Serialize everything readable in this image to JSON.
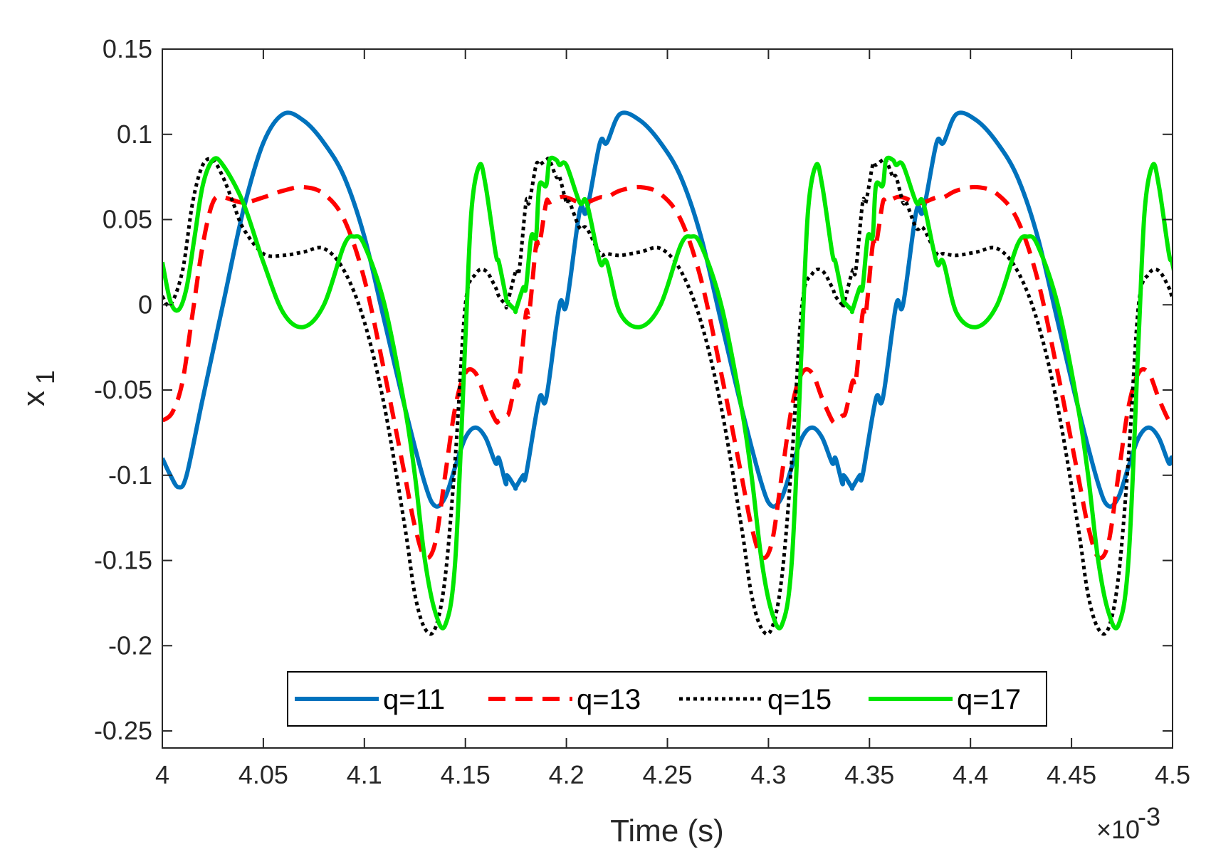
{
  "chart_data": {
    "type": "line",
    "title": "",
    "xlabel": "Time (s)",
    "ylabel": "x",
    "ylabel_subscript": "1",
    "x_exponent_label": "×10",
    "x_exponent_power": "-3",
    "xlim": [
      4.0,
      4.5
    ],
    "ylim": [
      -0.26,
      0.15
    ],
    "xticks": [
      4.0,
      4.05,
      4.1,
      4.15,
      4.2,
      4.25,
      4.3,
      4.35,
      4.4,
      4.45,
      4.5
    ],
    "xtick_labels": [
      "4",
      "4.05",
      "4.1",
      "4.15",
      "4.2",
      "4.25",
      "4.3",
      "4.35",
      "4.4",
      "4.45",
      "4.5"
    ],
    "yticks": [
      0.15,
      0.1,
      0.05,
      0,
      -0.05,
      -0.1,
      -0.15,
      -0.2,
      -0.25
    ],
    "ytick_labels": [
      "0.15",
      "0.1",
      "0.05",
      "0",
      "-0.05",
      "-0.1",
      "-0.15",
      "-0.2",
      "-0.25"
    ],
    "grid": false,
    "legend_position": "bottom-center",
    "period": 0.1666,
    "series": [
      {
        "name": "q=11",
        "label": "q=11",
        "color": "#0072BD",
        "style": "solid",
        "x": [
          4.0,
          4.004,
          4.008,
          4.012,
          4.02,
          4.03,
          4.04,
          4.05,
          4.06,
          4.07,
          4.08,
          4.09,
          4.1,
          4.11,
          4.12,
          4.13,
          4.135,
          4.14,
          4.145,
          4.15,
          4.155,
          4.16,
          4.165,
          4.17,
          4.175,
          4.18,
          4.19,
          4.2,
          4.21,
          4.22,
          4.2266
        ],
        "values": [
          -0.09,
          -0.1,
          -0.107,
          -0.1,
          -0.055,
          0.0,
          0.055,
          0.095,
          0.112,
          0.108,
          0.095,
          0.075,
          0.04,
          -0.01,
          -0.06,
          -0.105,
          -0.118,
          -0.113,
          -0.095,
          -0.078,
          -0.072,
          -0.078,
          -0.093,
          -0.105,
          -0.107,
          -0.1,
          -0.055,
          0.0,
          0.055,
          0.095,
          0.112
        ]
      },
      {
        "name": "q=13",
        "label": "q=13",
        "color": "#FF0000",
        "style": "dashed",
        "x": [
          4.0,
          4.005,
          4.01,
          4.015,
          4.02,
          4.025,
          4.03,
          4.04,
          4.05,
          4.06,
          4.07,
          4.08,
          4.09,
          4.1,
          4.11,
          4.12,
          4.125,
          4.13,
          4.135,
          4.14,
          4.145,
          4.15,
          4.155,
          4.16,
          4.165,
          4.17,
          4.175,
          4.18,
          4.185,
          4.19,
          4.2,
          4.21,
          4.22,
          4.2266
        ],
        "values": [
          -0.068,
          -0.063,
          -0.045,
          -0.005,
          0.035,
          0.06,
          0.063,
          0.06,
          0.063,
          0.067,
          0.069,
          0.065,
          0.05,
          0.015,
          -0.04,
          -0.1,
          -0.13,
          -0.148,
          -0.14,
          -0.1,
          -0.06,
          -0.04,
          -0.04,
          -0.055,
          -0.068,
          -0.065,
          -0.045,
          -0.005,
          0.035,
          0.06,
          0.063,
          0.06,
          0.063,
          0.067
        ]
      },
      {
        "name": "q=15",
        "label": "q=15",
        "color": "#000000",
        "style": "dotted",
        "x": [
          4.0,
          4.004,
          4.01,
          4.015,
          4.02,
          4.025,
          4.03,
          4.035,
          4.04,
          4.05,
          4.06,
          4.07,
          4.08,
          4.09,
          4.1,
          4.11,
          4.12,
          4.125,
          4.13,
          4.135,
          4.14,
          4.145,
          4.15,
          4.155,
          4.16,
          4.165,
          4.17,
          4.175,
          4.18,
          4.185,
          4.19,
          4.195,
          4.2,
          4.21,
          4.22,
          4.2266
        ],
        "values": [
          0.005,
          0.0,
          0.02,
          0.06,
          0.082,
          0.085,
          0.075,
          0.06,
          0.045,
          0.03,
          0.029,
          0.031,
          0.033,
          0.02,
          -0.01,
          -0.06,
          -0.13,
          -0.17,
          -0.19,
          -0.19,
          -0.16,
          -0.09,
          0.0,
          0.018,
          0.02,
          0.01,
          0.0,
          0.02,
          0.06,
          0.082,
          0.085,
          0.075,
          0.06,
          0.045,
          0.03,
          0.029
        ]
      },
      {
        "name": "q=17",
        "label": "q=17",
        "color": "#00E600",
        "style": "solid",
        "x": [
          4.0,
          4.004,
          4.008,
          4.012,
          4.016,
          4.02,
          4.025,
          4.03,
          4.04,
          4.05,
          4.06,
          4.07,
          4.08,
          4.09,
          4.095,
          4.1,
          4.11,
          4.12,
          4.125,
          4.13,
          4.135,
          4.14,
          4.145,
          4.15,
          4.153,
          4.157,
          4.16,
          4.165,
          4.17,
          4.175,
          4.18,
          4.185,
          4.19,
          4.195,
          4.2,
          4.21,
          4.22,
          4.2266
        ],
        "values": [
          0.025,
          0.002,
          -0.003,
          0.01,
          0.04,
          0.07,
          0.085,
          0.082,
          0.06,
          0.025,
          -0.005,
          -0.013,
          0.0,
          0.035,
          0.04,
          0.035,
          0.0,
          -0.06,
          -0.1,
          -0.15,
          -0.18,
          -0.188,
          -0.15,
          -0.02,
          0.055,
          0.082,
          0.07,
          0.03,
          0.005,
          -0.003,
          0.01,
          0.04,
          0.07,
          0.085,
          0.082,
          0.06,
          0.025,
          -0.005
        ]
      }
    ]
  }
}
